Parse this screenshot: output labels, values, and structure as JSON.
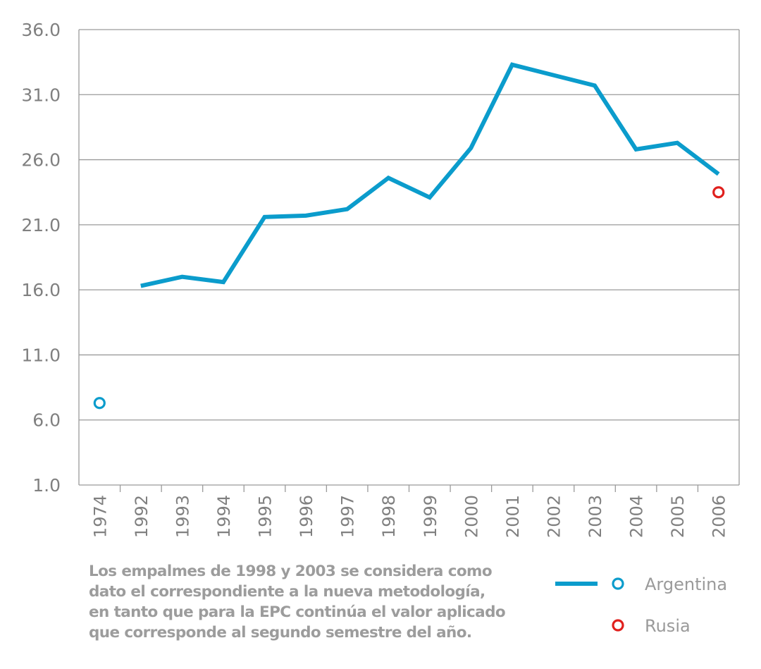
{
  "chart_data": {
    "type": "line",
    "x_categories": [
      "1974",
      "1992",
      "1993",
      "1994",
      "1995",
      "1996",
      "1997",
      "1998",
      "1999",
      "2000",
      "2001",
      "2002",
      "2003",
      "2004",
      "2005",
      "2006"
    ],
    "y_ticks": [
      "36.0",
      "31.0",
      "26.0",
      "21.0",
      "16.0",
      "11.0",
      "6.0",
      "1.0"
    ],
    "ylim": [
      1.0,
      36.0
    ],
    "grid": true,
    "series": [
      {
        "name": "Argentina",
        "kind": "line",
        "color": "#0b9ccc",
        "x": [
          "1992",
          "1993",
          "1994",
          "1995",
          "1996",
          "1997",
          "1998",
          "1999",
          "2000",
          "2001",
          "2002",
          "2003",
          "2004",
          "2005",
          "2006"
        ],
        "values": [
          16.3,
          17.0,
          16.6,
          21.6,
          21.7,
          22.2,
          24.6,
          23.1,
          26.9,
          33.3,
          32.5,
          31.7,
          26.8,
          27.3,
          24.9
        ]
      },
      {
        "name": "Argentina",
        "kind": "point",
        "color": "#0b9ccc",
        "x": [
          "1974"
        ],
        "values": [
          7.3
        ]
      },
      {
        "name": "Rusia",
        "kind": "point",
        "color": "#e0201d",
        "x": [
          "2006"
        ],
        "values": [
          23.5
        ]
      }
    ],
    "legend": {
      "placement": "bottom-right",
      "items": [
        {
          "label": "Argentina",
          "color": "#0b9ccc",
          "line": true
        },
        {
          "label": "Rusia",
          "color": "#e0201d",
          "line": false
        }
      ]
    }
  },
  "note_lines": [
    "Los empalmes de 1998 y 2003 se considera como",
    "dato el correspondiente a la nueva metodología,",
    "en tanto que para la EPC continúa el valor aplicado",
    "que corresponde al segundo semestre del año."
  ]
}
